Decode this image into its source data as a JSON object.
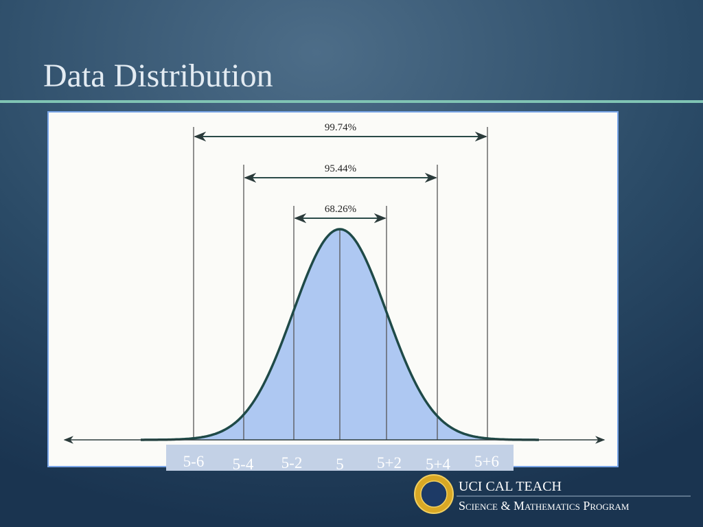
{
  "title": "Data Distribution",
  "diagram": {
    "ranges": [
      "99.74%",
      "95.44%",
      "68.26%"
    ],
    "axis_labels": [
      "5-6",
      "5-4",
      "5-2",
      "5",
      "5+2",
      "5+4",
      "5+6"
    ]
  },
  "logo": {
    "name": "UCI CAL TEACH",
    "program": "Science & Mathematics Program"
  }
}
